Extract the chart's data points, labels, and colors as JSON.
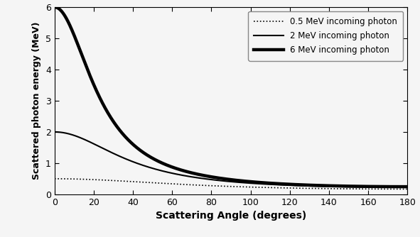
{
  "title": "",
  "xlabel": "Scattering Angle (degrees)",
  "ylabel": "Scattered photon energy (MeV)",
  "xlim": [
    0,
    180
  ],
  "ylim": [
    0,
    6
  ],
  "yticks": [
    0,
    1,
    2,
    3,
    4,
    5,
    6
  ],
  "xticks": [
    0,
    20,
    40,
    60,
    80,
    100,
    120,
    140,
    160,
    180
  ],
  "energies": [
    0.5,
    2.0,
    6.0
  ],
  "linestyles": [
    "dotted",
    "solid",
    "solid"
  ],
  "linewidths": [
    1.2,
    1.5,
    3.2
  ],
  "colors": [
    "#000000",
    "#000000",
    "#000000"
  ],
  "labels": [
    "0.5 MeV incoming photon",
    "2 MeV incoming photon",
    "6 MeV incoming photon"
  ],
  "me": 0.511,
  "legend_loc": "upper right",
  "background_color": "#f5f5f5",
  "figsize": [
    5.91,
    3.34
  ],
  "dpi": 100
}
